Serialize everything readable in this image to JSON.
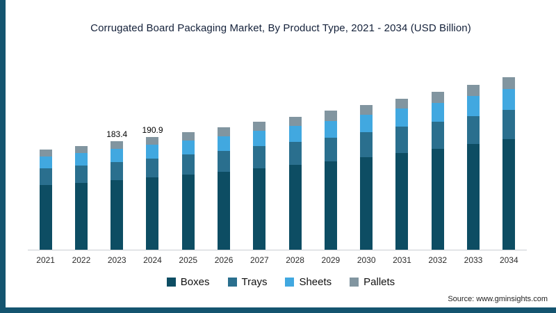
{
  "page": {
    "background": "#ffffff",
    "accent_border_color": "#14546f"
  },
  "chart_data": {
    "type": "bar",
    "stacked": true,
    "title": "Corrugated Board Packaging Market, By Product Type, 2021 - 2034 (USD Billion)",
    "categories": [
      "2021",
      "2022",
      "2023",
      "2024",
      "2025",
      "2026",
      "2027",
      "2028",
      "2029",
      "2030",
      "2031",
      "2032",
      "2033",
      "2034"
    ],
    "series": [
      {
        "name": "Boxes",
        "color": "#0d4d63",
        "values": [
          109,
          113,
          117.4,
          122.2,
          127,
          132,
          138,
          144,
          150,
          157,
          164,
          171,
          179,
          187
        ]
      },
      {
        "name": "Trays",
        "color": "#2a6f8e",
        "values": [
          29,
          30,
          31.2,
          32.5,
          34,
          35,
          37,
          38,
          40,
          42,
          44,
          45,
          47,
          50
        ]
      },
      {
        "name": "Sheets",
        "color": "#41a8e0",
        "values": [
          20,
          21,
          22.0,
          22.9,
          24,
          25,
          26,
          27,
          28,
          29,
          31,
          32,
          34,
          35
        ]
      },
      {
        "name": "Pallets",
        "color": "#8195a0",
        "values": [
          12,
          12,
          12.8,
          13.3,
          14,
          15,
          15,
          16,
          17,
          17,
          17,
          19,
          19,
          20
        ]
      }
    ],
    "totals": [
      170,
      176,
      183.4,
      190.9,
      199,
      207,
      216,
      225,
      235,
      245,
      256,
      267,
      279,
      292
    ],
    "data_labels": {
      "2023": "183.4",
      "2024": "190.9"
    },
    "ylim": [
      0,
      300
    ],
    "grid": false,
    "legend_position": "bottom"
  },
  "source": {
    "text": "Source: www.gminsights.com"
  }
}
